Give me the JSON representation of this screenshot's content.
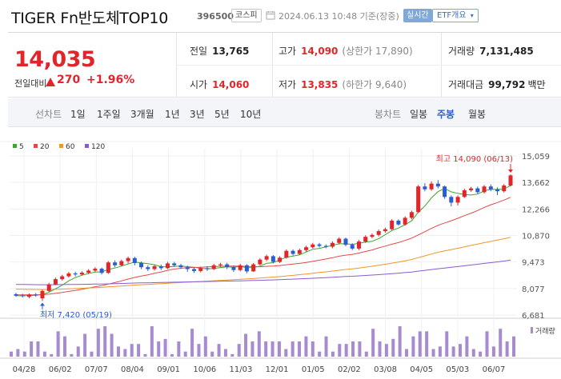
{
  "header": {
    "title": "TIGER Fn반도체TOP10",
    "code": "396500",
    "market": "코스피",
    "datetime": "2024.06.13 10:48 기준(장중)",
    "realtime": "실시간",
    "etf_overview": "ETF개요",
    "icons": [
      "calendar-icon",
      "chevron-down-icon"
    ]
  },
  "quote": {
    "price": "14,035",
    "change_label": "전일대비",
    "change_value": "270",
    "change_pct": "+1.96%",
    "prev_label": "전일",
    "prev_value": "13,765",
    "high_label": "고가",
    "high_value": "14,090",
    "high_sub": "(상한가 17,890)",
    "volume_label": "거래량",
    "volume_value": "7,131,485",
    "open_label": "시가",
    "open_value": "14,060",
    "low_label": "저가",
    "low_value": "13,835",
    "low_sub": "(하한가 9,640)",
    "amount_label": "거래대금",
    "amount_value": "99,792",
    "amount_unit": "백만",
    "colors": {
      "up": "#e0252b",
      "down": "#2a5dd0"
    }
  },
  "period_bar": {
    "line_label": "선차트",
    "line_periods": [
      "1일",
      "1주일",
      "3개월",
      "1년",
      "3년",
      "5년",
      "10년"
    ],
    "candle_label": "봉차트",
    "candle_periods": [
      "일봉",
      "주봉",
      "월봉"
    ],
    "active": "주봉"
  },
  "chart_data": {
    "type": "candlestick",
    "legend": [
      {
        "name": "5",
        "color": "#3aa82b"
      },
      {
        "name": "20",
        "color": "#e24a4a"
      },
      {
        "name": "60",
        "color": "#f0962a"
      },
      {
        "name": "120",
        "color": "#8a5ad0"
      }
    ],
    "y_ticks": [
      "15,059",
      "13,662",
      "12,266",
      "10,870",
      "9,473",
      "8,077",
      "6,681"
    ],
    "ylim": [
      6681,
      15059
    ],
    "x_ticks": [
      "04/28",
      "06/02",
      "07/07",
      "08/04",
      "09/01",
      "10/06",
      "11/03",
      "12/01",
      "01/05",
      "02/02",
      "03/08",
      "04/05",
      "05/03",
      "06/07"
    ],
    "high_annotation": "최고 14,090 (06/13)",
    "low_annotation": "최저 7,420 (05/19)",
    "volume_label": "거래량",
    "candles": [
      {
        "o": 7780,
        "c": 7700,
        "h": 7850,
        "l": 7640
      },
      {
        "o": 7720,
        "c": 7680,
        "h": 7800,
        "l": 7600
      },
      {
        "o": 7640,
        "c": 7760,
        "h": 7820,
        "l": 7560
      },
      {
        "o": 7760,
        "c": 7720,
        "h": 7840,
        "l": 7640
      },
      {
        "o": 7560,
        "c": 7950,
        "h": 8020,
        "l": 7420
      },
      {
        "o": 7950,
        "c": 8300,
        "h": 8380,
        "l": 7900
      },
      {
        "o": 8300,
        "c": 8570,
        "h": 8650,
        "l": 8250
      },
      {
        "o": 8570,
        "c": 8720,
        "h": 8800,
        "l": 8500
      },
      {
        "o": 8720,
        "c": 8870,
        "h": 8950,
        "l": 8650
      },
      {
        "o": 8870,
        "c": 8820,
        "h": 8960,
        "l": 8720
      },
      {
        "o": 8820,
        "c": 8910,
        "h": 8990,
        "l": 8760
      },
      {
        "o": 8910,
        "c": 9020,
        "h": 9100,
        "l": 8850
      },
      {
        "o": 9020,
        "c": 9120,
        "h": 9200,
        "l": 8950
      },
      {
        "o": 9120,
        "c": 8900,
        "h": 9180,
        "l": 8820
      },
      {
        "o": 8900,
        "c": 9450,
        "h": 9520,
        "l": 8850
      },
      {
        "o": 9450,
        "c": 9300,
        "h": 9560,
        "l": 9200
      },
      {
        "o": 9300,
        "c": 9520,
        "h": 9600,
        "l": 9250
      },
      {
        "o": 9520,
        "c": 9680,
        "h": 9760,
        "l": 9400
      },
      {
        "o": 9680,
        "c": 9420,
        "h": 9750,
        "l": 9300
      },
      {
        "o": 9420,
        "c": 9200,
        "h": 9500,
        "l": 9100
      },
      {
        "o": 9200,
        "c": 9100,
        "h": 9300,
        "l": 9000
      },
      {
        "o": 9100,
        "c": 9250,
        "h": 9330,
        "l": 9020
      },
      {
        "o": 9250,
        "c": 9150,
        "h": 9340,
        "l": 9050
      },
      {
        "o": 9150,
        "c": 9400,
        "h": 9480,
        "l": 9100
      },
      {
        "o": 9400,
        "c": 9300,
        "h": 9480,
        "l": 9220
      },
      {
        "o": 9300,
        "c": 9200,
        "h": 9380,
        "l": 9100
      },
      {
        "o": 9200,
        "c": 9100,
        "h": 9280,
        "l": 8960
      },
      {
        "o": 9100,
        "c": 9000,
        "h": 9180,
        "l": 8900
      },
      {
        "o": 9000,
        "c": 9150,
        "h": 9230,
        "l": 8930
      },
      {
        "o": 9150,
        "c": 9100,
        "h": 9250,
        "l": 9000
      },
      {
        "o": 9100,
        "c": 9300,
        "h": 9380,
        "l": 9050
      },
      {
        "o": 9300,
        "c": 9350,
        "h": 9430,
        "l": 9200
      },
      {
        "o": 9350,
        "c": 9200,
        "h": 9430,
        "l": 9100
      },
      {
        "o": 9200,
        "c": 9050,
        "h": 9280,
        "l": 8950
      },
      {
        "o": 9050,
        "c": 9300,
        "h": 9380,
        "l": 8980
      },
      {
        "o": 9300,
        "c": 8980,
        "h": 9360,
        "l": 8880
      },
      {
        "o": 8980,
        "c": 9350,
        "h": 9420,
        "l": 8950
      },
      {
        "o": 9350,
        "c": 9600,
        "h": 9680,
        "l": 9300
      },
      {
        "o": 9600,
        "c": 9780,
        "h": 9860,
        "l": 9520
      },
      {
        "o": 9780,
        "c": 9480,
        "h": 9840,
        "l": 9400
      },
      {
        "o": 9480,
        "c": 9700,
        "h": 9780,
        "l": 9420
      },
      {
        "o": 9700,
        "c": 10060,
        "h": 10140,
        "l": 9650
      },
      {
        "o": 10060,
        "c": 9900,
        "h": 10140,
        "l": 9820
      },
      {
        "o": 9900,
        "c": 10100,
        "h": 10180,
        "l": 9850
      },
      {
        "o": 10100,
        "c": 10250,
        "h": 10330,
        "l": 10020
      },
      {
        "o": 10250,
        "c": 10400,
        "h": 10480,
        "l": 10180
      },
      {
        "o": 10400,
        "c": 10320,
        "h": 10480,
        "l": 10240
      },
      {
        "o": 10320,
        "c": 10280,
        "h": 10400,
        "l": 10200
      },
      {
        "o": 10280,
        "c": 10480,
        "h": 10560,
        "l": 10200
      },
      {
        "o": 10480,
        "c": 10700,
        "h": 10780,
        "l": 10400
      },
      {
        "o": 10700,
        "c": 10380,
        "h": 10760,
        "l": 10300
      },
      {
        "o": 10380,
        "c": 10180,
        "h": 10460,
        "l": 10100
      },
      {
        "o": 10180,
        "c": 10550,
        "h": 10630,
        "l": 10100
      },
      {
        "o": 10550,
        "c": 10800,
        "h": 10880,
        "l": 10480
      },
      {
        "o": 10800,
        "c": 10900,
        "h": 10980,
        "l": 10720
      },
      {
        "o": 10900,
        "c": 11100,
        "h": 11180,
        "l": 10820
      },
      {
        "o": 11100,
        "c": 11200,
        "h": 11280,
        "l": 11020
      },
      {
        "o": 11200,
        "c": 11650,
        "h": 11730,
        "l": 11150
      },
      {
        "o": 11650,
        "c": 11450,
        "h": 11720,
        "l": 11380
      },
      {
        "o": 11450,
        "c": 11800,
        "h": 11880,
        "l": 11380
      },
      {
        "o": 11800,
        "c": 12100,
        "h": 12180,
        "l": 11720
      },
      {
        "o": 12100,
        "c": 13450,
        "h": 13530,
        "l": 12050
      },
      {
        "o": 13450,
        "c": 13300,
        "h": 13620,
        "l": 13200
      },
      {
        "o": 13300,
        "c": 13600,
        "h": 13720,
        "l": 13220
      },
      {
        "o": 13600,
        "c": 13450,
        "h": 13780,
        "l": 13350
      },
      {
        "o": 13450,
        "c": 12900,
        "h": 13500,
        "l": 12800
      },
      {
        "o": 12900,
        "c": 12600,
        "h": 12980,
        "l": 12400
      },
      {
        "o": 12600,
        "c": 12900,
        "h": 12980,
        "l": 12450
      },
      {
        "o": 12900,
        "c": 13250,
        "h": 13330,
        "l": 12850
      },
      {
        "o": 13250,
        "c": 13350,
        "h": 13430,
        "l": 13170
      },
      {
        "o": 13350,
        "c": 13150,
        "h": 13440,
        "l": 13050
      },
      {
        "o": 13150,
        "c": 13450,
        "h": 13530,
        "l": 13080
      },
      {
        "o": 13450,
        "c": 13300,
        "h": 13560,
        "l": 13200
      },
      {
        "o": 13300,
        "c": 13200,
        "h": 13400,
        "l": 13000
      },
      {
        "o": 13200,
        "c": 13500,
        "h": 13580,
        "l": 13130
      },
      {
        "o": 13500,
        "c": 14035,
        "h": 14090,
        "l": 13450
      }
    ],
    "volumes": [
      2,
      3,
      2,
      6,
      6,
      2,
      1,
      10,
      8,
      1,
      4,
      9,
      2,
      11,
      12,
      9,
      4,
      3,
      5,
      5,
      1,
      12,
      6,
      7,
      1,
      6,
      2,
      11,
      5,
      8,
      2,
      5,
      3,
      1,
      5,
      9,
      6,
      10,
      6,
      6,
      6,
      3,
      6,
      6,
      8,
      6,
      2,
      8,
      2,
      5,
      5,
      6,
      6,
      2,
      11,
      6,
      5,
      7,
      12,
      3,
      8,
      10,
      10,
      3,
      4,
      10,
      4,
      5,
      8,
      3,
      2,
      10,
      4,
      11,
      6,
      8
    ]
  }
}
